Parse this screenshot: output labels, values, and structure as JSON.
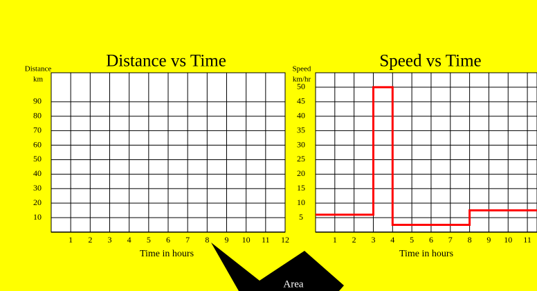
{
  "chart_data": [
    {
      "type": "line",
      "title": "Distance vs Time",
      "y_label": [
        "Distance",
        "km"
      ],
      "x_label": "Time in hours",
      "xlim": [
        0,
        12
      ],
      "xticks": [
        1,
        2,
        3,
        4,
        5,
        6,
        7,
        8,
        9,
        10,
        11,
        12
      ],
      "ylim": [
        0,
        110
      ],
      "yticks": [
        10,
        20,
        30,
        40,
        50,
        60,
        70,
        80,
        90
      ],
      "grid": true
    },
    {
      "type": "line",
      "title": "Speed vs Time",
      "y_label": [
        "Speed",
        "km/hr"
      ],
      "x_label": "Time in hours",
      "xlim": [
        0,
        11.5
      ],
      "xticks": [
        1,
        2,
        3,
        4,
        5,
        6,
        7,
        8,
        9,
        10,
        11
      ],
      "ylim": [
        0,
        55
      ],
      "yticks": [
        5,
        10,
        15,
        20,
        25,
        30,
        35,
        40,
        45,
        50
      ],
      "grid": true,
      "series": [
        {
          "color": "#ff0000",
          "x": [
            0,
            3,
            3,
            4,
            4,
            8,
            8,
            11.5
          ],
          "values": [
            6,
            6,
            50,
            50,
            2.5,
            2.5,
            7.5,
            7.5
          ]
        }
      ]
    }
  ],
  "callout": {
    "text": "Area"
  }
}
